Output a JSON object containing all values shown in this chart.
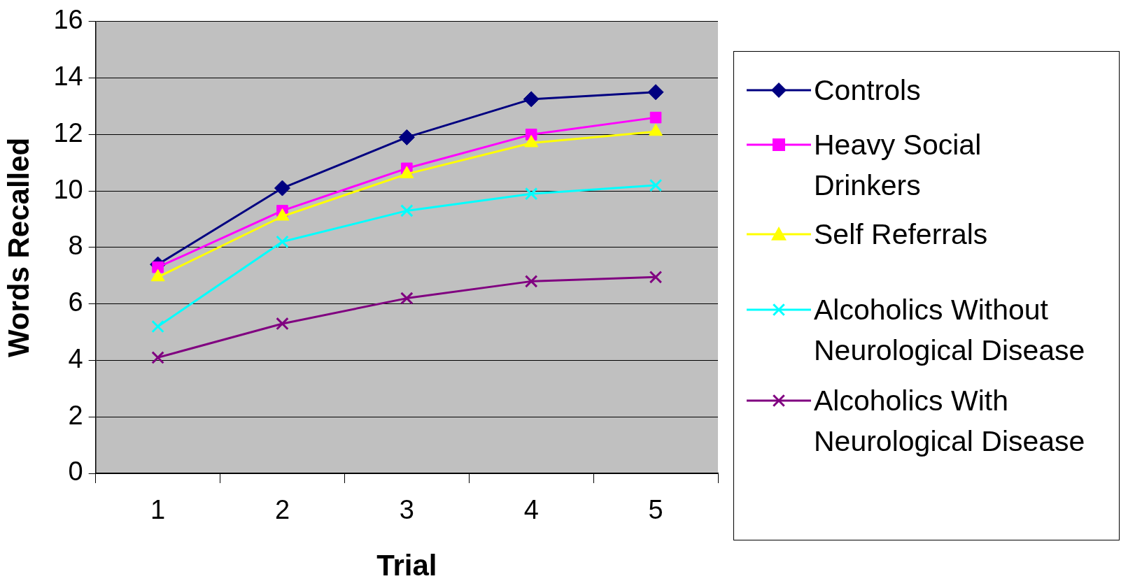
{
  "chart_data": {
    "type": "line",
    "xlabel": "Trial",
    "ylabel": "Words Recalled",
    "categories": [
      "1",
      "2",
      "3",
      "4",
      "5"
    ],
    "series": [
      {
        "name": "Controls",
        "color": "#000080",
        "marker": "diamond",
        "values": [
          7.4,
          10.1,
          11.9,
          13.25,
          13.5
        ]
      },
      {
        "name": "Heavy Social Drinkers",
        "color": "#ff00ff",
        "marker": "square",
        "values": [
          7.3,
          9.3,
          10.8,
          12.0,
          12.6
        ]
      },
      {
        "name": "Self Referrals",
        "color": "#ffff00",
        "marker": "triangle",
        "values": [
          6.95,
          9.1,
          10.6,
          11.7,
          12.1
        ]
      },
      {
        "name": "Alcoholics Without Neurological Disease",
        "color": "#00ffff",
        "marker": "cross",
        "values": [
          5.2,
          8.2,
          9.3,
          9.9,
          10.2
        ]
      },
      {
        "name": "Alcoholics With Neurological Disease",
        "color": "#800080",
        "marker": "cross",
        "values": [
          4.1,
          5.3,
          6.2,
          6.8,
          6.95
        ]
      }
    ],
    "ylim": [
      0,
      16
    ],
    "yticks": [
      0,
      2,
      4,
      6,
      8,
      10,
      12,
      14,
      16
    ],
    "grid": "y",
    "legend": "right"
  }
}
